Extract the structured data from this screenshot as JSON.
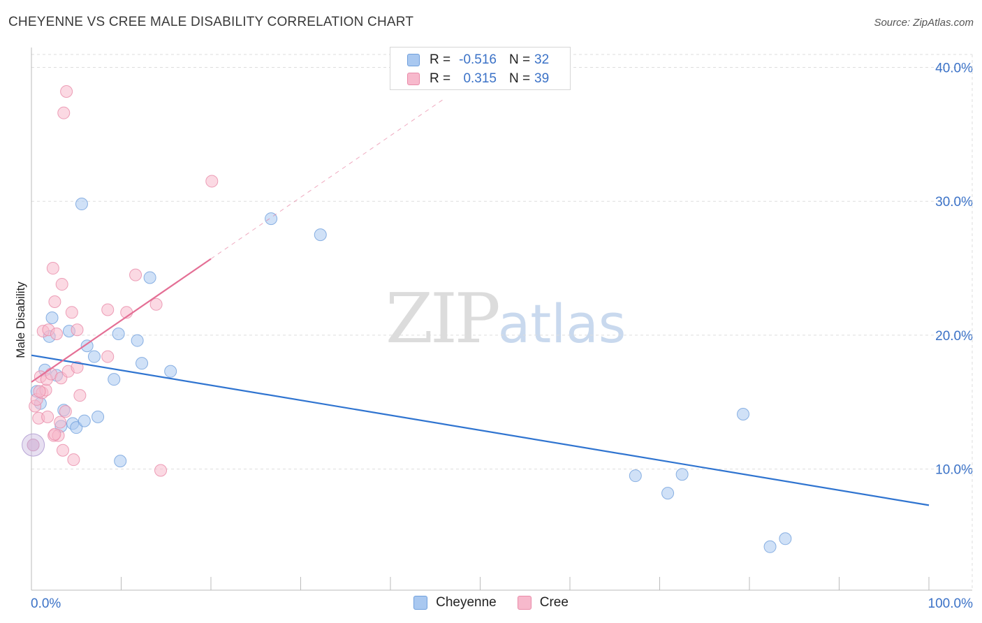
{
  "header": {
    "title": "CHEYENNE VS CREE MALE DISABILITY CORRELATION CHART",
    "source": "Source: ZipAtlas.com"
  },
  "watermark": {
    "zip": "ZIP",
    "atlas": "atlas"
  },
  "legend_top": {
    "rows": [
      {
        "r_label": "R =",
        "r_value": "-0.516",
        "n_label": "N =",
        "n_value": "32"
      },
      {
        "r_label": "R =",
        "r_value": "0.315",
        "n_label": "N =",
        "n_value": "39"
      }
    ]
  },
  "legend_bottom": {
    "items": [
      {
        "label": "Cheyenne"
      },
      {
        "label": "Cree"
      }
    ]
  },
  "colors": {
    "cheyenne_fill": "#a9c8f0",
    "cheyenne_stroke": "#6f9fdc",
    "cheyenne_line": "#2f74d0",
    "cree_fill": "#f7b9cc",
    "cree_stroke": "#e98aa8",
    "cree_line": "#e46f95",
    "axis_text": "#3b72c7",
    "grid": "#dddddd"
  },
  "chart_data": {
    "type": "scatter",
    "title": "CHEYENNE VS CREE MALE DISABILITY CORRELATION CHART",
    "xlabel": "",
    "ylabel": "Male Disability",
    "xlim": [
      0,
      100
    ],
    "ylim": [
      0,
      41
    ],
    "x_tick_labels": [
      "0.0%",
      "100.0%"
    ],
    "y_ticks": [
      10,
      20,
      30,
      40
    ],
    "y_tick_labels": [
      "10.0%",
      "20.0%",
      "30.0%",
      "40.0%"
    ],
    "series": [
      {
        "name": "Cheyenne",
        "r": -0.516,
        "n": 32,
        "points": [
          [
            0.2,
            11.8
          ],
          [
            0.6,
            15.8
          ],
          [
            1.0,
            14.9
          ],
          [
            1.5,
            17.4
          ],
          [
            2.0,
            19.9
          ],
          [
            2.3,
            21.3
          ],
          [
            2.8,
            17.0
          ],
          [
            3.3,
            13.2
          ],
          [
            3.6,
            14.4
          ],
          [
            4.2,
            20.3
          ],
          [
            4.6,
            13.4
          ],
          [
            5.0,
            13.1
          ],
          [
            5.6,
            29.8
          ],
          [
            5.9,
            13.6
          ],
          [
            6.2,
            19.2
          ],
          [
            7.0,
            18.4
          ],
          [
            7.4,
            13.9
          ],
          [
            9.2,
            16.7
          ],
          [
            9.7,
            20.1
          ],
          [
            9.9,
            10.6
          ],
          [
            11.8,
            19.6
          ],
          [
            12.3,
            17.9
          ],
          [
            13.2,
            24.3
          ],
          [
            15.5,
            17.3
          ],
          [
            26.7,
            28.7
          ],
          [
            32.2,
            27.5
          ],
          [
            67.3,
            9.5
          ],
          [
            70.9,
            8.2
          ],
          [
            72.5,
            9.6
          ],
          [
            79.3,
            14.1
          ],
          [
            82.3,
            4.2
          ],
          [
            84.0,
            4.8
          ]
        ],
        "trend": {
          "x0": 0,
          "y0": 18.5,
          "x1": 100,
          "y1": 7.3
        }
      },
      {
        "name": "Cree",
        "r": 0.315,
        "n": 39,
        "points": [
          [
            0.2,
            11.8
          ],
          [
            0.4,
            14.7
          ],
          [
            0.6,
            15.2
          ],
          [
            0.8,
            13.8
          ],
          [
            1.0,
            16.9
          ],
          [
            1.2,
            15.7
          ],
          [
            1.3,
            20.3
          ],
          [
            1.6,
            15.9
          ],
          [
            1.7,
            16.7
          ],
          [
            1.8,
            13.9
          ],
          [
            1.9,
            20.4
          ],
          [
            2.2,
            17.1
          ],
          [
            2.5,
            12.5
          ],
          [
            2.4,
            25.0
          ],
          [
            2.6,
            22.5
          ],
          [
            2.8,
            20.1
          ],
          [
            3.0,
            12.5
          ],
          [
            3.2,
            13.5
          ],
          [
            3.3,
            16.8
          ],
          [
            3.4,
            23.8
          ],
          [
            3.5,
            11.4
          ],
          [
            3.6,
            36.6
          ],
          [
            3.8,
            14.3
          ],
          [
            3.9,
            38.2
          ],
          [
            4.1,
            17.3
          ],
          [
            4.5,
            21.7
          ],
          [
            4.7,
            10.7
          ],
          [
            5.1,
            17.6
          ],
          [
            5.4,
            15.5
          ],
          [
            5.1,
            20.4
          ],
          [
            8.5,
            18.4
          ],
          [
            8.5,
            21.9
          ],
          [
            10.6,
            21.7
          ],
          [
            11.6,
            24.5
          ],
          [
            13.9,
            22.3
          ],
          [
            14.4,
            9.9
          ],
          [
            20.1,
            31.5
          ],
          [
            2.6,
            12.6
          ],
          [
            0.9,
            15.8
          ]
        ],
        "trend": {
          "x0": 0,
          "y0": 16.5,
          "x1": 20,
          "y1": 25.7,
          "dash_to_x": 46
        }
      }
    ]
  }
}
